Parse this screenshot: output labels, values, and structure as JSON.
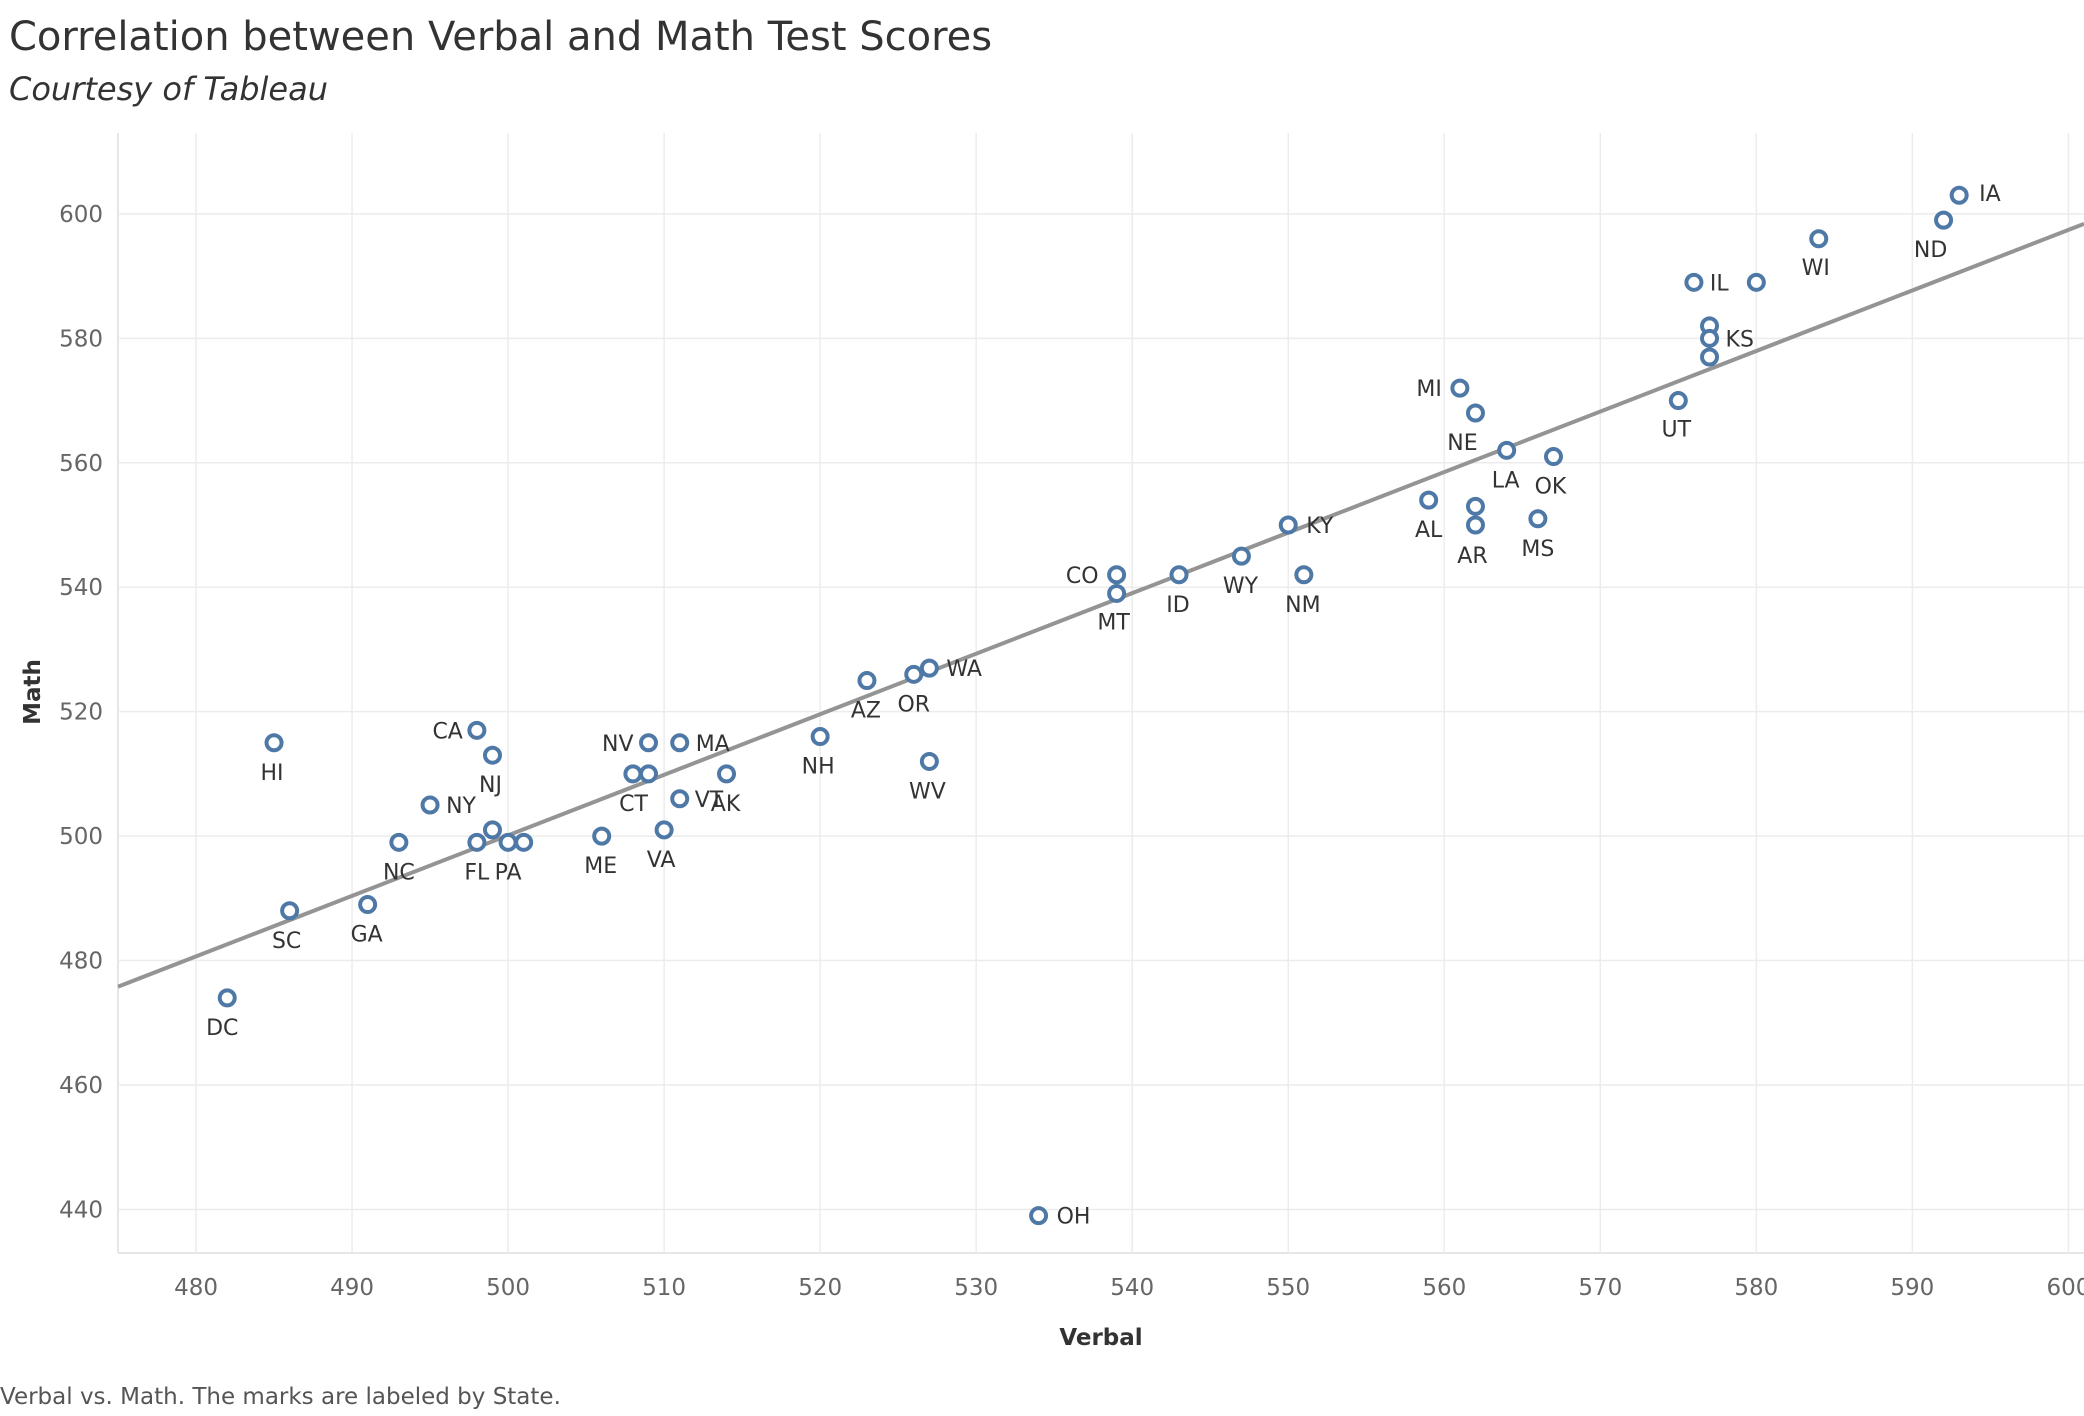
{
  "title": "Correlation between Verbal and Math Test Scores",
  "subtitle": "Courtesy of Tableau",
  "caption": "Verbal vs. Math.  The marks are labeled by State.",
  "colors": {
    "marker": "#4e79a7",
    "trend": "#949494",
    "grid": "#ececec",
    "axis_text": "#666666",
    "label_text": "#333333"
  },
  "chart_data": {
    "type": "scatter",
    "xlabel": "Verbal",
    "ylabel": "Math",
    "xlim": [
      475,
      601
    ],
    "ylim": [
      433,
      613
    ],
    "x_ticks": [
      480,
      490,
      500,
      510,
      520,
      530,
      540,
      550,
      560,
      570,
      580,
      590,
      600
    ],
    "y_ticks": [
      440,
      460,
      480,
      500,
      520,
      540,
      560,
      580,
      600
    ],
    "grid": true,
    "marker": "hollow-circle",
    "trend_line": {
      "x": [
        475,
        601
      ],
      "y": [
        475.8,
        598.4
      ]
    },
    "points": [
      {
        "label": "IA",
        "x": 593,
        "y": 603
      },
      {
        "label": "ND",
        "x": 592,
        "y": 599
      },
      {
        "label": "WI",
        "x": 584,
        "y": 596
      },
      {
        "label": "IL",
        "x": 576,
        "y": 589
      },
      {
        "label": "",
        "x": 580,
        "y": 589
      },
      {
        "label": "",
        "x": 577,
        "y": 582
      },
      {
        "label": "KS",
        "x": 577,
        "y": 580
      },
      {
        "label": "",
        "x": 577,
        "y": 577
      },
      {
        "label": "UT",
        "x": 575,
        "y": 570
      },
      {
        "label": "MI",
        "x": 561,
        "y": 572
      },
      {
        "label": "NE",
        "x": 562,
        "y": 568
      },
      {
        "label": "LA",
        "x": 564,
        "y": 562
      },
      {
        "label": "OK",
        "x": 567,
        "y": 561
      },
      {
        "label": "AL",
        "x": 559,
        "y": 554
      },
      {
        "label": "",
        "x": 562,
        "y": 553
      },
      {
        "label": "AR",
        "x": 562,
        "y": 550
      },
      {
        "label": "MS",
        "x": 566,
        "y": 551
      },
      {
        "label": "KY",
        "x": 550,
        "y": 550
      },
      {
        "label": "WY",
        "x": 547,
        "y": 545
      },
      {
        "label": "NM",
        "x": 551,
        "y": 542
      },
      {
        "label": "ID",
        "x": 543,
        "y": 542
      },
      {
        "label": "CO",
        "x": 539,
        "y": 542
      },
      {
        "label": "MT",
        "x": 539,
        "y": 539
      },
      {
        "label": "WA",
        "x": 527,
        "y": 527
      },
      {
        "label": "OR",
        "x": 526,
        "y": 526
      },
      {
        "label": "AZ",
        "x": 523,
        "y": 525
      },
      {
        "label": "WV",
        "x": 527,
        "y": 512
      },
      {
        "label": "NH",
        "x": 520,
        "y": 516
      },
      {
        "label": "MA",
        "x": 511,
        "y": 515
      },
      {
        "label": "NV",
        "x": 509,
        "y": 515
      },
      {
        "label": "",
        "x": 508,
        "y": 510
      },
      {
        "label": "CT",
        "x": 509,
        "y": 510
      },
      {
        "label": "AK",
        "x": 514,
        "y": 510
      },
      {
        "label": "VT",
        "x": 511,
        "y": 506
      },
      {
        "label": "VA",
        "x": 510,
        "y": 501
      },
      {
        "label": "ME",
        "x": 506,
        "y": 500
      },
      {
        "label": "CA",
        "x": 498,
        "y": 517
      },
      {
        "label": "NJ",
        "x": 499,
        "y": 513
      },
      {
        "label": "",
        "x": 499,
        "y": 501
      },
      {
        "label": "FL",
        "x": 498,
        "y": 499
      },
      {
        "label": "PA",
        "x": 500,
        "y": 499
      },
      {
        "label": "",
        "x": 501,
        "y": 499
      },
      {
        "label": "NY",
        "x": 495,
        "y": 505
      },
      {
        "label": "NC",
        "x": 493,
        "y": 499
      },
      {
        "label": "GA",
        "x": 491,
        "y": 489
      },
      {
        "label": "SC",
        "x": 486,
        "y": 488
      },
      {
        "label": "HI",
        "x": 485,
        "y": 515
      },
      {
        "label": "DC",
        "x": 482,
        "y": 474
      },
      {
        "label": "OH",
        "x": 534,
        "y": 439
      }
    ]
  }
}
